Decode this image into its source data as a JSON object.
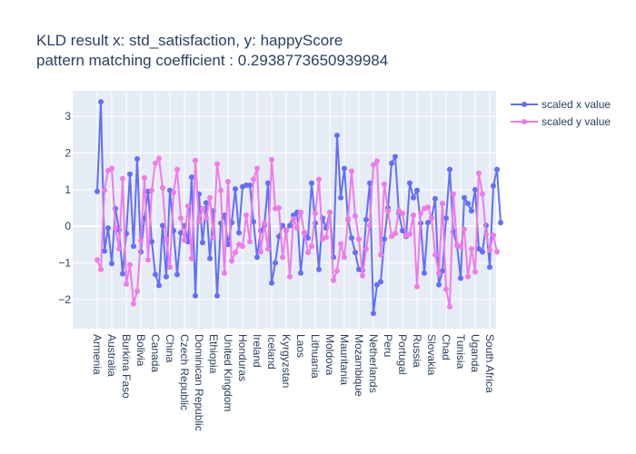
{
  "chart_data": {
    "type": "line",
    "title_line1": "KLD result x: std_satisfaction, y: happyScore",
    "title_line2": "pattern matching coefficient : 0.2938773650939984",
    "ylim": [
      -2.8,
      3.7
    ],
    "y_ticks": [
      -2,
      -1,
      0,
      1,
      2,
      3
    ],
    "grid": true,
    "legend_position": "top-right",
    "x_tick_labels": [
      {
        "index": 0,
        "label": "Armenia"
      },
      {
        "index": 4,
        "label": "Australia"
      },
      {
        "index": 8,
        "label": "Burkina Faso"
      },
      {
        "index": 12,
        "label": "Bolivia"
      },
      {
        "index": 16,
        "label": "Canada"
      },
      {
        "index": 20,
        "label": "China"
      },
      {
        "index": 24,
        "label": "Czech Republic"
      },
      {
        "index": 28,
        "label": "Dominican Republic"
      },
      {
        "index": 32,
        "label": "Ethiopia"
      },
      {
        "index": 36,
        "label": "United Kingdom"
      },
      {
        "index": 40,
        "label": "Honduras"
      },
      {
        "index": 44,
        "label": "Ireland"
      },
      {
        "index": 48,
        "label": "Iceland"
      },
      {
        "index": 52,
        "label": "Kyrgyzstan"
      },
      {
        "index": 56,
        "label": "Laos"
      },
      {
        "index": 60,
        "label": "Lithuania"
      },
      {
        "index": 64,
        "label": "Moldova"
      },
      {
        "index": 68,
        "label": "Mauritania"
      },
      {
        "index": 72,
        "label": "Mozambique"
      },
      {
        "index": 76,
        "label": "Netherlands"
      },
      {
        "index": 80,
        "label": "Peru"
      },
      {
        "index": 84,
        "label": "Portugal"
      },
      {
        "index": 88,
        "label": "Russia"
      },
      {
        "index": 92,
        "label": "Slovakia"
      },
      {
        "index": 96,
        "label": "Chad"
      },
      {
        "index": 100,
        "label": "Tunisia"
      },
      {
        "index": 104,
        "label": "Uganda"
      },
      {
        "index": 108,
        "label": "South Africa"
      }
    ],
    "series": [
      {
        "name": "scaled x value",
        "color": "#636efa",
        "values": [
          0.95,
          3.4,
          -0.68,
          -0.05,
          -1.02,
          0.48,
          -0.1,
          -1.3,
          -0.2,
          1.42,
          -0.55,
          1.84,
          -0.7,
          0.22,
          0.95,
          -0.42,
          -1.32,
          -1.62,
          0.02,
          -1.38,
          0.98,
          -0.12,
          -1.32,
          -0.18,
          0.02,
          -0.42,
          1.34,
          -1.9,
          0.88,
          -0.45,
          0.64,
          -0.88,
          0.42,
          -1.9,
          0.08,
          0.3,
          -0.5,
          0.1,
          1.02,
          -0.18,
          1.08,
          1.12,
          1.12,
          0.12,
          -0.85,
          -0.12,
          0.02,
          1.18,
          -1.55,
          -1.0,
          -0.28,
          0.02,
          -0.12,
          0.02,
          0.3,
          0.38,
          -1.28,
          -0.18,
          -0.32,
          1.18,
          0.08,
          -1.18,
          0.22,
          -0.05,
          0.38,
          -0.85,
          2.48,
          0.78,
          1.58,
          0.18,
          -0.32,
          -0.72,
          -1.18,
          -1.2,
          0.18,
          1.18,
          -2.38,
          -1.6,
          -1.52,
          -0.35,
          0.5,
          1.72,
          1.9,
          0.35,
          -0.12,
          -0.28,
          1.18,
          0.78,
          0.98,
          0.08,
          -1.28,
          0.1,
          0.22,
          0.75,
          -1.6,
          -1.22,
          0.22,
          1.55,
          -0.15,
          -0.52,
          -1.42,
          0.78,
          0.62,
          0.42,
          1.0,
          -0.62,
          -0.7,
          0.02,
          -1.12,
          1.1,
          1.55,
          0.1
        ]
      },
      {
        "name": "scaled y value",
        "color": "#ef7be9",
        "values": [
          -0.92,
          -1.18,
          0.98,
          1.52,
          1.58,
          -0.05,
          -0.62,
          1.3,
          -1.58,
          -1.05,
          -2.12,
          -1.78,
          -0.4,
          1.32,
          -0.92,
          0.98,
          1.72,
          1.85,
          1.05,
          -0.35,
          -1.12,
          0.92,
          1.55,
          0.22,
          -0.38,
          0.55,
          -0.88,
          1.8,
          0.12,
          0.48,
          0.22,
          0.78,
          -0.3,
          1.7,
          0.98,
          -1.28,
          1.22,
          -0.95,
          -0.72,
          -0.5,
          -0.55,
          0.3,
          -0.42,
          1.28,
          1.58,
          -0.7,
          0.08,
          -0.62,
          1.82,
          0.48,
          0.5,
          -0.85,
          -0.1,
          -1.38,
          0.2,
          -0.05,
          0.38,
          -0.18,
          -0.72,
          -0.55,
          0.35,
          1.28,
          -0.35,
          -0.3,
          0.38,
          -1.48,
          -1.22,
          -0.48,
          -0.85,
          0.2,
          1.5,
          0.28,
          -0.35,
          -1.35,
          -0.62,
          0.02,
          1.68,
          1.78,
          -0.78,
          1.15,
          0.42,
          -0.28,
          -0.2,
          0.42,
          0.35,
          -0.25,
          -0.22,
          0.3,
          -1.65,
          0.35,
          0.48,
          0.52,
          0.22,
          -0.78,
          -1.28,
          0.62,
          -1.72,
          -2.2,
          0.88,
          -0.52,
          -0.55,
          -0.08,
          -1.38,
          -0.62,
          -1.25,
          1.45,
          0.88,
          -0.22,
          -0.65,
          -0.25,
          -0.7
        ]
      }
    ]
  }
}
